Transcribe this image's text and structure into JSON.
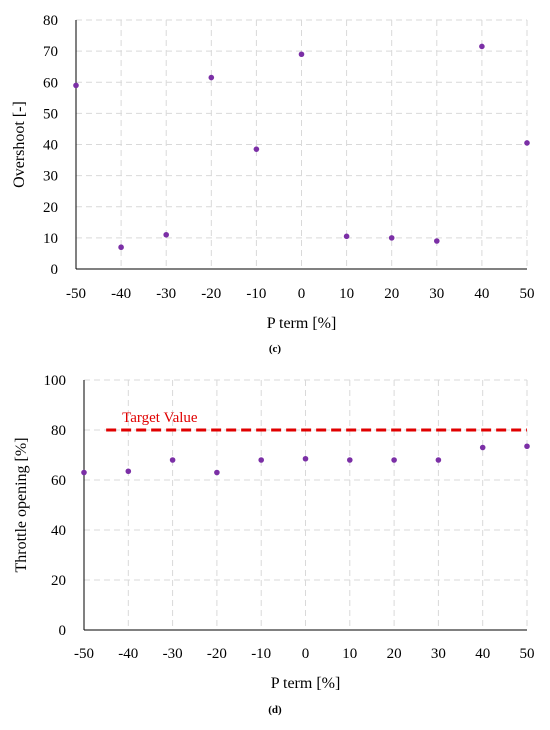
{
  "chart_data": [
    {
      "type": "scatter",
      "caption": "(c)",
      "xlabel": "P term [%]",
      "ylabel": "Overshoot [-]",
      "xlim": [
        -50,
        50
      ],
      "ylim": [
        0,
        80
      ],
      "xticks": [
        -50,
        -40,
        -30,
        -20,
        -10,
        0,
        10,
        20,
        30,
        40,
        50
      ],
      "yticks": [
        0,
        10,
        20,
        30,
        40,
        50,
        60,
        70,
        80
      ],
      "grid": true,
      "marker_color": "#7b2fa6",
      "x": [
        -50,
        -40,
        -30,
        -20,
        -10,
        0,
        10,
        20,
        30,
        40,
        50
      ],
      "y": [
        59,
        7,
        11,
        61.5,
        38.5,
        69,
        10.5,
        10,
        9,
        71.5,
        40.5
      ]
    },
    {
      "type": "scatter",
      "caption": "(d)",
      "xlabel": "P term [%]",
      "ylabel": "Throttle opening [%]",
      "xlim": [
        -50,
        50
      ],
      "ylim": [
        0,
        100
      ],
      "xticks": [
        -50,
        -40,
        -30,
        -20,
        -10,
        0,
        10,
        20,
        30,
        40,
        50
      ],
      "yticks": [
        0,
        20,
        40,
        60,
        80,
        100
      ],
      "grid": true,
      "marker_color": "#7b2fa6",
      "x": [
        -50,
        -40,
        -30,
        -20,
        -10,
        0,
        10,
        20,
        30,
        40,
        50
      ],
      "y": [
        63,
        63.5,
        68,
        63,
        68,
        68.5,
        68,
        68,
        68,
        73,
        73.5
      ],
      "reference_line": {
        "label": "Target Value",
        "y": 80,
        "x_start": -45,
        "color": "#e00000",
        "style": "dashed"
      }
    }
  ]
}
